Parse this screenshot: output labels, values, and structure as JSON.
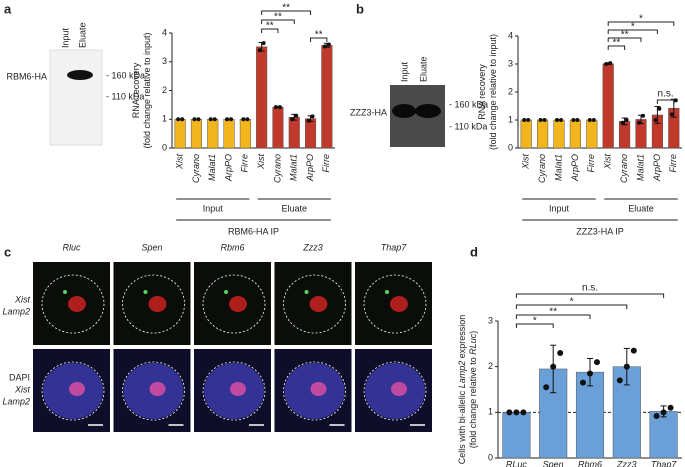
{
  "panels": [
    "a",
    "b",
    "c",
    "d"
  ],
  "blots": [
    {
      "lanes": [
        "Input",
        "Eluate"
      ],
      "protein": "RBM6-HA",
      "markers": [
        "- 160 kDa",
        "- 110 kDa"
      ]
    },
    {
      "lanes": [
        "Input",
        "Eluate"
      ],
      "protein": "ZZZ3-HA",
      "markers": [
        "- 160 kDa",
        "- 110 kDa"
      ]
    }
  ],
  "microscopy": {
    "columns": [
      "Rluc",
      "Spen",
      "Rbm6",
      "Zzz3",
      "Thap7"
    ],
    "rows": [
      [
        {
          "text": "Xist",
          "color": "#e0202a"
        },
        {
          "text": "Lamp2",
          "color": "#2a9a3a"
        }
      ],
      [
        {
          "text": "DAPI",
          "color": "#2a3ac0"
        },
        {
          "text": "Xist",
          "color": "#e0202a"
        },
        {
          "text": "Lamp2",
          "color": "#2a9a3a"
        }
      ]
    ]
  },
  "chart_data": [
    {
      "type": "bar",
      "ylabel": [
        [
          {
            "text": "RNA recovery"
          }
        ],
        [
          {
            "text": "(fold change relative to input)"
          }
        ]
      ],
      "xlabel": "RBM6-HA IP",
      "ylim": [
        0,
        4
      ],
      "yticks": [
        0,
        1,
        2,
        3,
        4
      ],
      "series": [
        {
          "name": "Input",
          "color": "#f2b51d",
          "categories": [
            "Xist",
            "Cyrano",
            "Malat1",
            "ArpPO",
            "Firre"
          ],
          "values": [
            1,
            1,
            1,
            1,
            1
          ],
          "errors": [
            0,
            0,
            0,
            0,
            0
          ],
          "points": [
            [
              1,
              1
            ],
            [
              1,
              1
            ],
            [
              1,
              1
            ],
            [
              1,
              1
            ],
            [
              1,
              1
            ]
          ]
        },
        {
          "name": "Eluate",
          "color": "#c0392b",
          "categories": [
            "Xist",
            "Cyrano",
            "Malat1",
            "ArpPO",
            "Firre"
          ],
          "values": [
            3.52,
            1.42,
            1.07,
            1.02,
            3.57
          ],
          "errors": [
            0.15,
            0.02,
            0.1,
            0.1,
            0.07
          ],
          "points": [
            [
              3.4,
              3.65
            ],
            [
              1.42,
              1.42
            ],
            [
              1.0,
              1.12
            ],
            [
              0.95,
              1.1
            ],
            [
              3.53,
              3.6
            ]
          ]
        }
      ],
      "comparisons": [
        {
          "label": "**",
          "between": [
            5,
            6
          ]
        },
        {
          "label": "**",
          "between": [
            5,
            7
          ]
        },
        {
          "label": "**",
          "between": [
            5,
            8
          ]
        },
        {
          "label": "**",
          "between": [
            8,
            9
          ]
        }
      ]
    },
    {
      "type": "bar",
      "ylabel": [
        [
          {
            "text": "RNA recovery"
          }
        ],
        [
          {
            "text": "(fold change relative to input)"
          }
        ]
      ],
      "xlabel": "ZZZ3-HA IP",
      "ylim": [
        0,
        4
      ],
      "yticks": [
        0,
        1,
        2,
        3,
        4
      ],
      "series": [
        {
          "name": "Input",
          "color": "#f2b51d",
          "categories": [
            "Xist",
            "Cyrano",
            "Malat1",
            "ArpPO",
            "Firre"
          ],
          "values": [
            1,
            1,
            1,
            1,
            1
          ],
          "errors": [
            0,
            0,
            0,
            0,
            0
          ],
          "points": [
            [
              1,
              1
            ],
            [
              1,
              1
            ],
            [
              1,
              1
            ],
            [
              1,
              1
            ],
            [
              1,
              1
            ]
          ]
        },
        {
          "name": "Eluate",
          "color": "#c0392b",
          "categories": [
            "Xist",
            "Cyrano",
            "Malat1",
            "ArpPO",
            "Firre"
          ],
          "values": [
            3.01,
            0.95,
            1.02,
            1.18,
            1.42
          ],
          "errors": [
            0.03,
            0.12,
            0.15,
            0.3,
            0.32
          ],
          "points": [
            [
              3.0,
              3.03
            ],
            [
              0.9,
              1.0
            ],
            [
              0.9,
              1.15
            ],
            [
              1.0,
              1.4
            ],
            [
              1.2,
              1.7
            ]
          ]
        }
      ],
      "comparisons": [
        {
          "label": "**",
          "between": [
            5,
            6
          ]
        },
        {
          "label": "**",
          "between": [
            5,
            7
          ]
        },
        {
          "label": "*",
          "between": [
            5,
            8
          ]
        },
        {
          "label": "*",
          "between": [
            5,
            9
          ]
        },
        {
          "label": "n.s.",
          "between": [
            8,
            9
          ]
        }
      ]
    },
    {
      "type": "bar",
      "ylabel": [
        [
          {
            "text": "Cells with bi-allelic "
          },
          {
            "text": "Lamp2",
            "italic": true
          },
          {
            "text": " expression"
          }
        ],
        [
          {
            "text": "(fold change relative to "
          },
          {
            "text": "RLuc",
            "italic": true
          },
          {
            "text": ")"
          }
        ]
      ],
      "ylim": [
        0,
        3
      ],
      "yticks": [
        0,
        1,
        2,
        3
      ],
      "refline": 1,
      "color": "#6a9fd8",
      "categories": [
        "RLuc",
        "Spen",
        "Rbm6",
        "Zzz3",
        "Thap7"
      ],
      "values": [
        1,
        1.95,
        1.88,
        2.0,
        1.02
      ],
      "errors": [
        0,
        0.52,
        0.3,
        0.4,
        0.12
      ],
      "points": [
        [
          1,
          1,
          1
        ],
        [
          1.55,
          2.0,
          2.3
        ],
        [
          1.65,
          1.85,
          2.1
        ],
        [
          1.7,
          2.0,
          2.35
        ],
        [
          0.92,
          1.0,
          1.1
        ]
      ],
      "comparisons": [
        {
          "label": "*",
          "between": [
            0,
            1
          ]
        },
        {
          "label": "**",
          "between": [
            0,
            2
          ]
        },
        {
          "label": "*",
          "between": [
            0,
            3
          ]
        },
        {
          "label": "n.s.",
          "between": [
            0,
            4
          ]
        }
      ]
    }
  ]
}
